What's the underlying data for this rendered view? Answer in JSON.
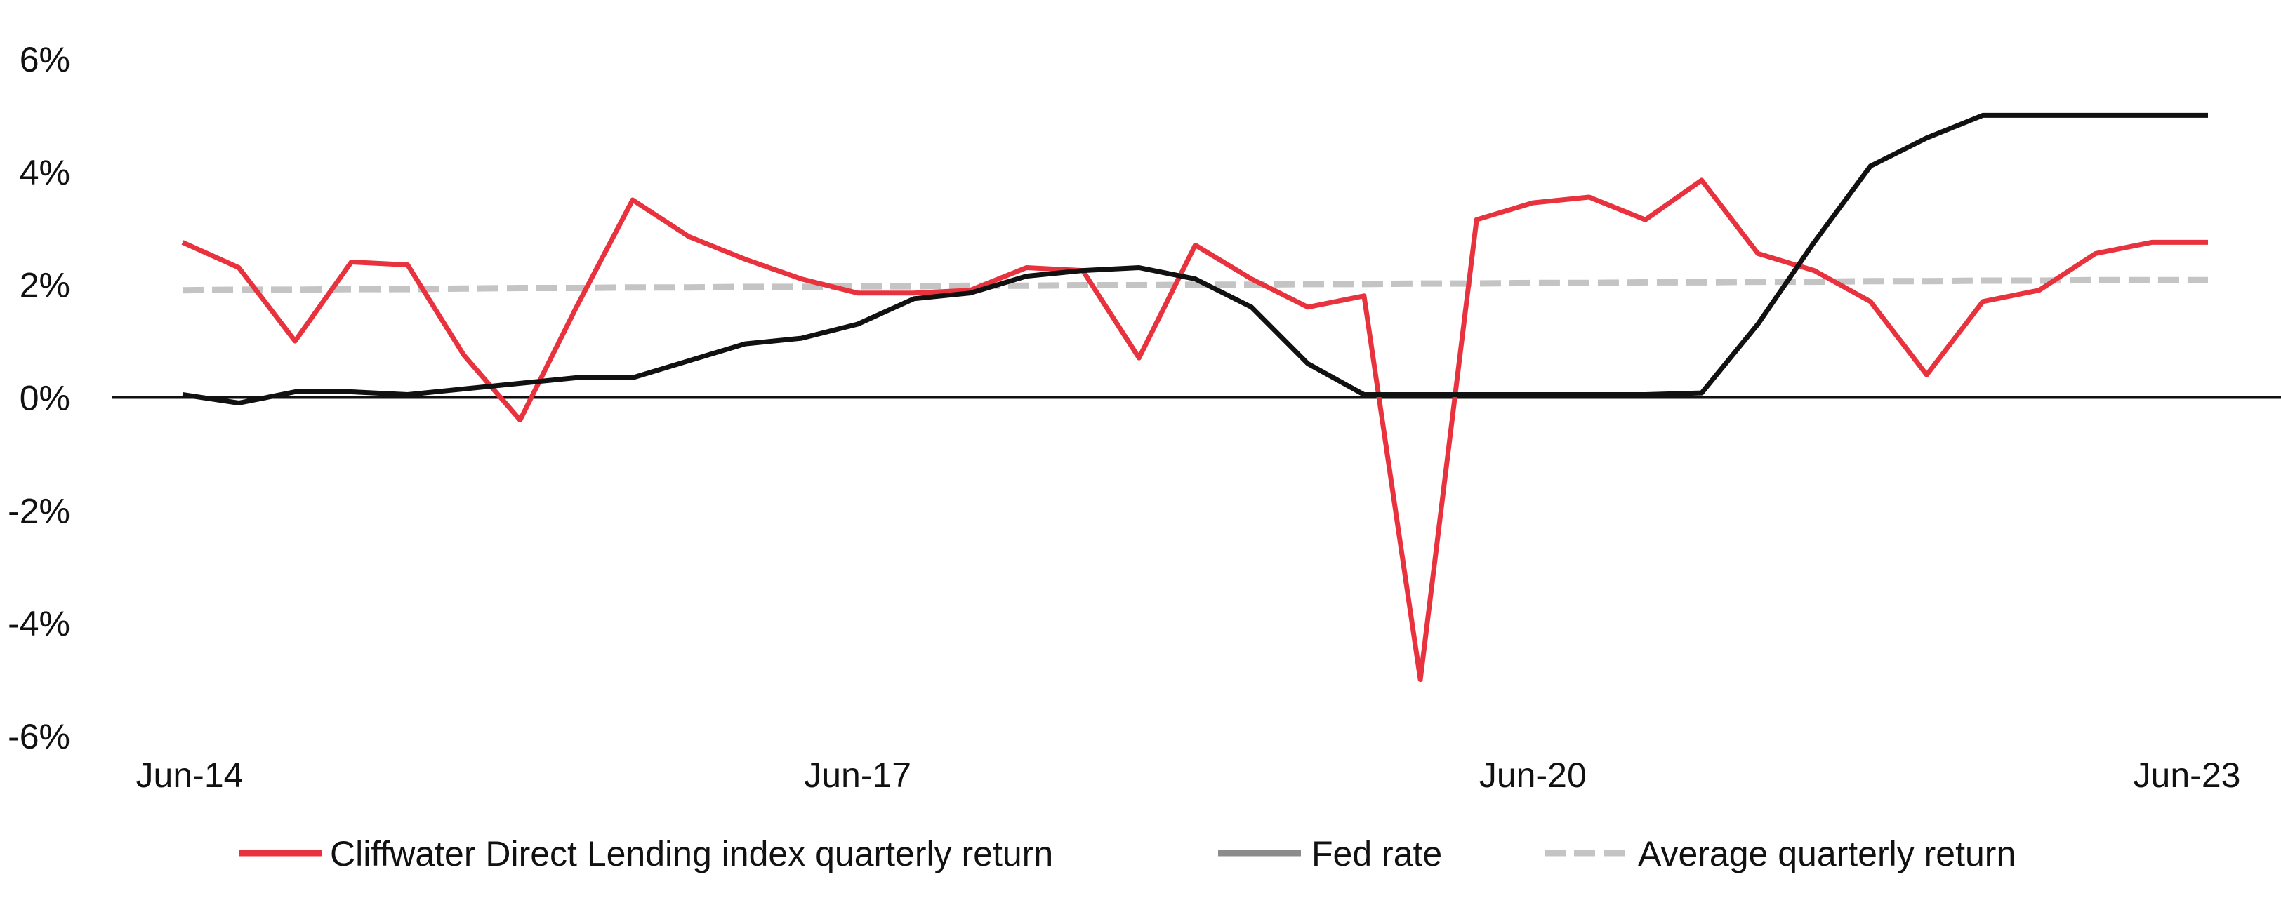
{
  "chart_data": {
    "type": "line",
    "title": "",
    "xlabel": "",
    "ylabel": "",
    "ylim": [
      -6,
      6
    ],
    "yticks": [
      6,
      4,
      2,
      0,
      -2,
      -4,
      -6
    ],
    "ytick_labels": [
      "6%",
      "4%",
      "2%",
      "0%",
      "-2%",
      "-4%",
      "-6%"
    ],
    "xticks": [
      "Jun-14",
      "Jun-17",
      "Jun-20",
      "Jun-23"
    ],
    "xtick_index": [
      0,
      12,
      24,
      36
    ],
    "x": [
      "Jun-14",
      "Sep-14",
      "Dec-14",
      "Mar-15",
      "Jun-15",
      "Sep-15",
      "Dec-15",
      "Mar-16",
      "Jun-16",
      "Sep-16",
      "Dec-16",
      "Mar-17",
      "Jun-17",
      "Sep-17",
      "Dec-17",
      "Mar-18",
      "Jun-18",
      "Sep-18",
      "Dec-18",
      "Mar-19",
      "Jun-19",
      "Sep-19",
      "Dec-19",
      "Mar-20",
      "Jun-20",
      "Sep-20",
      "Dec-20",
      "Mar-21",
      "Jun-21",
      "Sep-21",
      "Dec-21",
      "Mar-22",
      "Jun-22",
      "Sep-22",
      "Dec-22",
      "Mar-23",
      "Jun-23"
    ],
    "series": [
      {
        "name": "Cliffwater Direct Lending index quarterly return",
        "color": "#e8333f",
        "style": "solid",
        "values": [
          2.75,
          2.3,
          1.0,
          2.4,
          2.35,
          0.75,
          -0.4,
          1.6,
          3.5,
          2.85,
          2.45,
          2.1,
          1.85,
          1.85,
          1.9,
          2.3,
          2.25,
          0.7,
          2.7,
          2.1,
          1.6,
          1.8,
          -5.0,
          3.15,
          3.45,
          3.55,
          3.15,
          3.85,
          2.55,
          2.25,
          1.7,
          0.4,
          1.7,
          1.9,
          2.55,
          2.75,
          2.75
        ]
      },
      {
        "name": "Fed rate",
        "color": "#111111",
        "legend_color": "#8c8c8c",
        "style": "solid",
        "values": [
          0.05,
          -0.1,
          0.1,
          0.1,
          0.05,
          0.15,
          0.25,
          0.35,
          0.35,
          0.65,
          0.95,
          1.05,
          1.3,
          1.75,
          1.85,
          2.15,
          2.25,
          2.3,
          2.1,
          1.6,
          0.6,
          0.05,
          0.05,
          0.05,
          0.05,
          0.05,
          0.05,
          0.08,
          1.3,
          2.75,
          4.1,
          4.6,
          5.0,
          5.0,
          5.0,
          5.0,
          5.0
        ]
      },
      {
        "name": "Average quarterly return",
        "color": "#c4c4c4",
        "style": "dashed",
        "values": [
          1.9,
          1.91,
          1.91,
          1.92,
          1.92,
          1.93,
          1.94,
          1.94,
          1.95,
          1.95,
          1.96,
          1.96,
          1.97,
          1.97,
          1.98,
          1.98,
          1.99,
          1.99,
          2.0,
          2.0,
          2.01,
          2.01,
          2.02,
          2.02,
          2.03,
          2.03,
          2.04,
          2.04,
          2.05,
          2.05,
          2.06,
          2.06,
          2.07,
          2.07,
          2.08,
          2.08,
          2.08
        ]
      }
    ],
    "legend_position": "bottom",
    "grid": false
  }
}
